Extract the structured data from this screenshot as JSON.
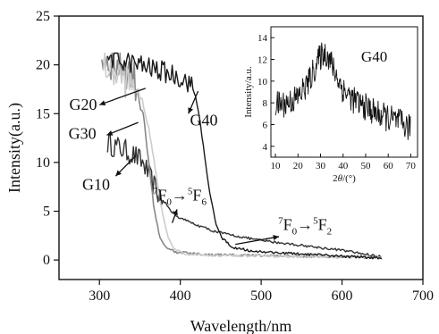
{
  "chart_data": {
    "type": "line",
    "xlabel": "Wavelength/nm",
    "ylabel": "Intensity(a.u.)",
    "xlim": [
      250,
      700
    ],
    "ylim": [
      -2,
      25
    ],
    "xticks": [
      300,
      400,
      500,
      600,
      700
    ],
    "yticks": [
      0,
      5,
      10,
      15,
      20,
      25
    ],
    "grid": false,
    "series": [
      {
        "name": "G10",
        "color": "#333333",
        "noise": 1.2,
        "noise_until": 378,
        "points": [
          [
            310,
            12.0
          ],
          [
            330,
            11.3
          ],
          [
            345,
            10.6
          ],
          [
            355,
            9.8
          ],
          [
            362,
            8.5
          ],
          [
            370,
            7.2
          ],
          [
            380,
            6.0
          ],
          [
            390,
            4.9
          ],
          [
            400,
            4.3
          ],
          [
            420,
            3.6
          ],
          [
            440,
            3.0
          ],
          [
            460,
            2.6
          ],
          [
            500,
            2.0
          ],
          [
            550,
            1.5
          ],
          [
            600,
            1.0
          ],
          [
            650,
            0.3
          ]
        ]
      },
      {
        "name": "G20",
        "color": "#888888",
        "noise": 2.0,
        "noise_until": 352,
        "points": [
          [
            303,
            20.8
          ],
          [
            318,
            20.2
          ],
          [
            332,
            19.6
          ],
          [
            342,
            18.8
          ],
          [
            350,
            17.0
          ],
          [
            356,
            13.5
          ],
          [
            362,
            9.0
          ],
          [
            368,
            5.0
          ],
          [
            374,
            2.5
          ],
          [
            382,
            1.3
          ],
          [
            395,
            0.8
          ],
          [
            430,
            0.55
          ],
          [
            500,
            0.45
          ],
          [
            600,
            0.35
          ],
          [
            650,
            0.25
          ]
        ]
      },
      {
        "name": "G30",
        "color": "#cccccc",
        "noise": 1.8,
        "noise_until": 345,
        "points": [
          [
            305,
            20.0
          ],
          [
            320,
            19.2
          ],
          [
            335,
            18.2
          ],
          [
            345,
            17.5
          ],
          [
            352,
            16.5
          ],
          [
            360,
            14.0
          ],
          [
            368,
            10.0
          ],
          [
            376,
            5.5
          ],
          [
            384,
            2.6
          ],
          [
            392,
            1.2
          ],
          [
            405,
            0.6
          ],
          [
            450,
            0.45
          ],
          [
            550,
            0.35
          ],
          [
            650,
            0.25
          ]
        ]
      },
      {
        "name": "G40",
        "color": "#1a1a1a",
        "noise": 1.1,
        "noise_until": 415,
        "points": [
          [
            310,
            20.8
          ],
          [
            340,
            20.2
          ],
          [
            370,
            19.5
          ],
          [
            395,
            18.9
          ],
          [
            412,
            18.2
          ],
          [
            420,
            16.5
          ],
          [
            428,
            12.0
          ],
          [
            436,
            7.0
          ],
          [
            444,
            3.8
          ],
          [
            452,
            2.2
          ],
          [
            465,
            1.3
          ],
          [
            490,
            0.9
          ],
          [
            550,
            0.6
          ],
          [
            600,
            0.4
          ],
          [
            650,
            0.2
          ]
        ]
      }
    ],
    "annotations": [
      {
        "id": "G20",
        "label": "G20",
        "x": 297,
        "y": 15.4
      },
      {
        "id": "G30",
        "label": "G30",
        "x": 296,
        "y": 12.4
      },
      {
        "id": "G10",
        "label": "G10",
        "x": 313,
        "y": 7.2
      },
      {
        "id": "G40",
        "label": "G40",
        "x": 412,
        "y": 13.8
      }
    ],
    "arrows": [
      {
        "id": "G20",
        "from": [
          300,
          15.9
        ],
        "to": [
          357,
          17.6
        ]
      },
      {
        "id": "G30",
        "from": [
          309,
          12.8
        ],
        "to": [
          348,
          14.1
        ]
      },
      {
        "id": "G10",
        "from": [
          320,
          8.6
        ],
        "to": [
          345,
          10.7
        ]
      },
      {
        "id": "G40",
        "from": [
          410,
          15.0
        ],
        "to": [
          422,
          17.3
        ]
      },
      {
        "id": "7F0-5F6",
        "from": [
          396,
          5.2
        ],
        "to": [
          390,
          3.8
        ]
      },
      {
        "id": "7F0-5F2",
        "from": [
          522,
          2.4
        ],
        "to": [
          468,
          1.6
        ]
      }
    ],
    "transitions": [
      {
        "id": "7F0-5F6",
        "x": 366,
        "y": 6.1,
        "label": "7F0→5F6",
        "from_sup": "7",
        "from_main": "F",
        "from_sub": "0",
        "arrow": "→",
        "to_sup": "5",
        "to_main": "F",
        "to_sub": "6"
      },
      {
        "id": "7F0-5F2",
        "x": 521,
        "y": 3.1,
        "label": "7F0→5F2",
        "from_sup": "7",
        "from_main": "F",
        "from_sub": "0",
        "arrow": "→",
        "to_sup": "5",
        "to_main": "F",
        "to_sub": "2"
      }
    ],
    "inset": {
      "type": "line",
      "xlabel": "2θ/(°)",
      "xlabel_main": "2",
      "xlabel_theta": "θ",
      "xlabel_unit": "/(°)",
      "ylabel": "Intensity/a.u.",
      "xlim": [
        8,
        73
      ],
      "ylim": [
        3,
        15
      ],
      "xticks": [
        10,
        20,
        30,
        40,
        50,
        60,
        70
      ],
      "yticks": [
        4,
        6,
        8,
        10,
        12,
        14
      ],
      "label": "G40",
      "label_x": 48,
      "label_y": 11.8,
      "series": [
        {
          "name": "G40",
          "color": "#111111",
          "noise": 1.3,
          "points": [
            [
              10,
              7.8
            ],
            [
              15,
              8.0
            ],
            [
              20,
              8.5
            ],
            [
              25,
              10.0
            ],
            [
              28,
              11.5
            ],
            [
              31,
              12.6
            ],
            [
              33,
              12.5
            ],
            [
              36,
              11.0
            ],
            [
              40,
              9.2
            ],
            [
              45,
              8.2
            ],
            [
              50,
              7.6
            ],
            [
              55,
              7.0
            ],
            [
              60,
              6.6
            ],
            [
              65,
              6.2
            ],
            [
              70,
              5.6
            ]
          ]
        }
      ]
    }
  }
}
